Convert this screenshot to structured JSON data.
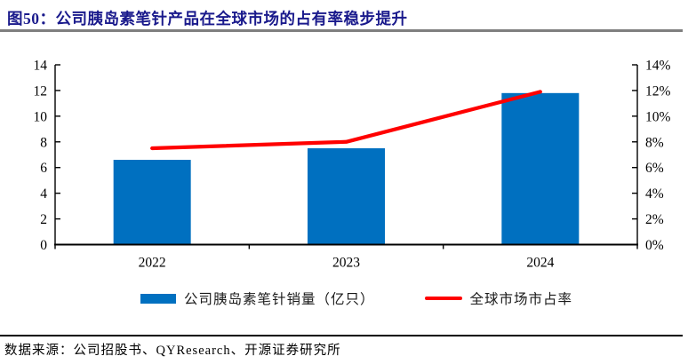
{
  "header": {
    "title": "图50：公司胰岛素笔针产品在全球市场的占有率稳步提升"
  },
  "footer": {
    "source": "数据来源：公司招股书、QYResearch、开源证券研究所"
  },
  "chart_data": {
    "type": "bar+line combo",
    "categories": [
      "2022",
      "2023",
      "2024"
    ],
    "series": [
      {
        "name": "公司胰岛素笔针销量（亿只）",
        "type": "bar",
        "axis": "left",
        "values": [
          6.6,
          7.5,
          11.8
        ]
      },
      {
        "name": "全球市场市占率",
        "type": "line",
        "axis": "right",
        "values": [
          7.5,
          8.0,
          11.9
        ],
        "unit": "%"
      }
    ],
    "left_axis": {
      "min": 0,
      "max": 14,
      "step": 2,
      "suffix": ""
    },
    "right_axis": {
      "min": 0,
      "max": 14,
      "step": 2,
      "suffix": "%"
    },
    "grid": false,
    "legend_position": "bottom",
    "colors": {
      "bar": "#0070C0",
      "line": "#FF0000",
      "axis": "#000000",
      "title_text": "#1A1A8C",
      "title_rule": "#7F7F7F",
      "footer_rule": "#000000"
    }
  }
}
